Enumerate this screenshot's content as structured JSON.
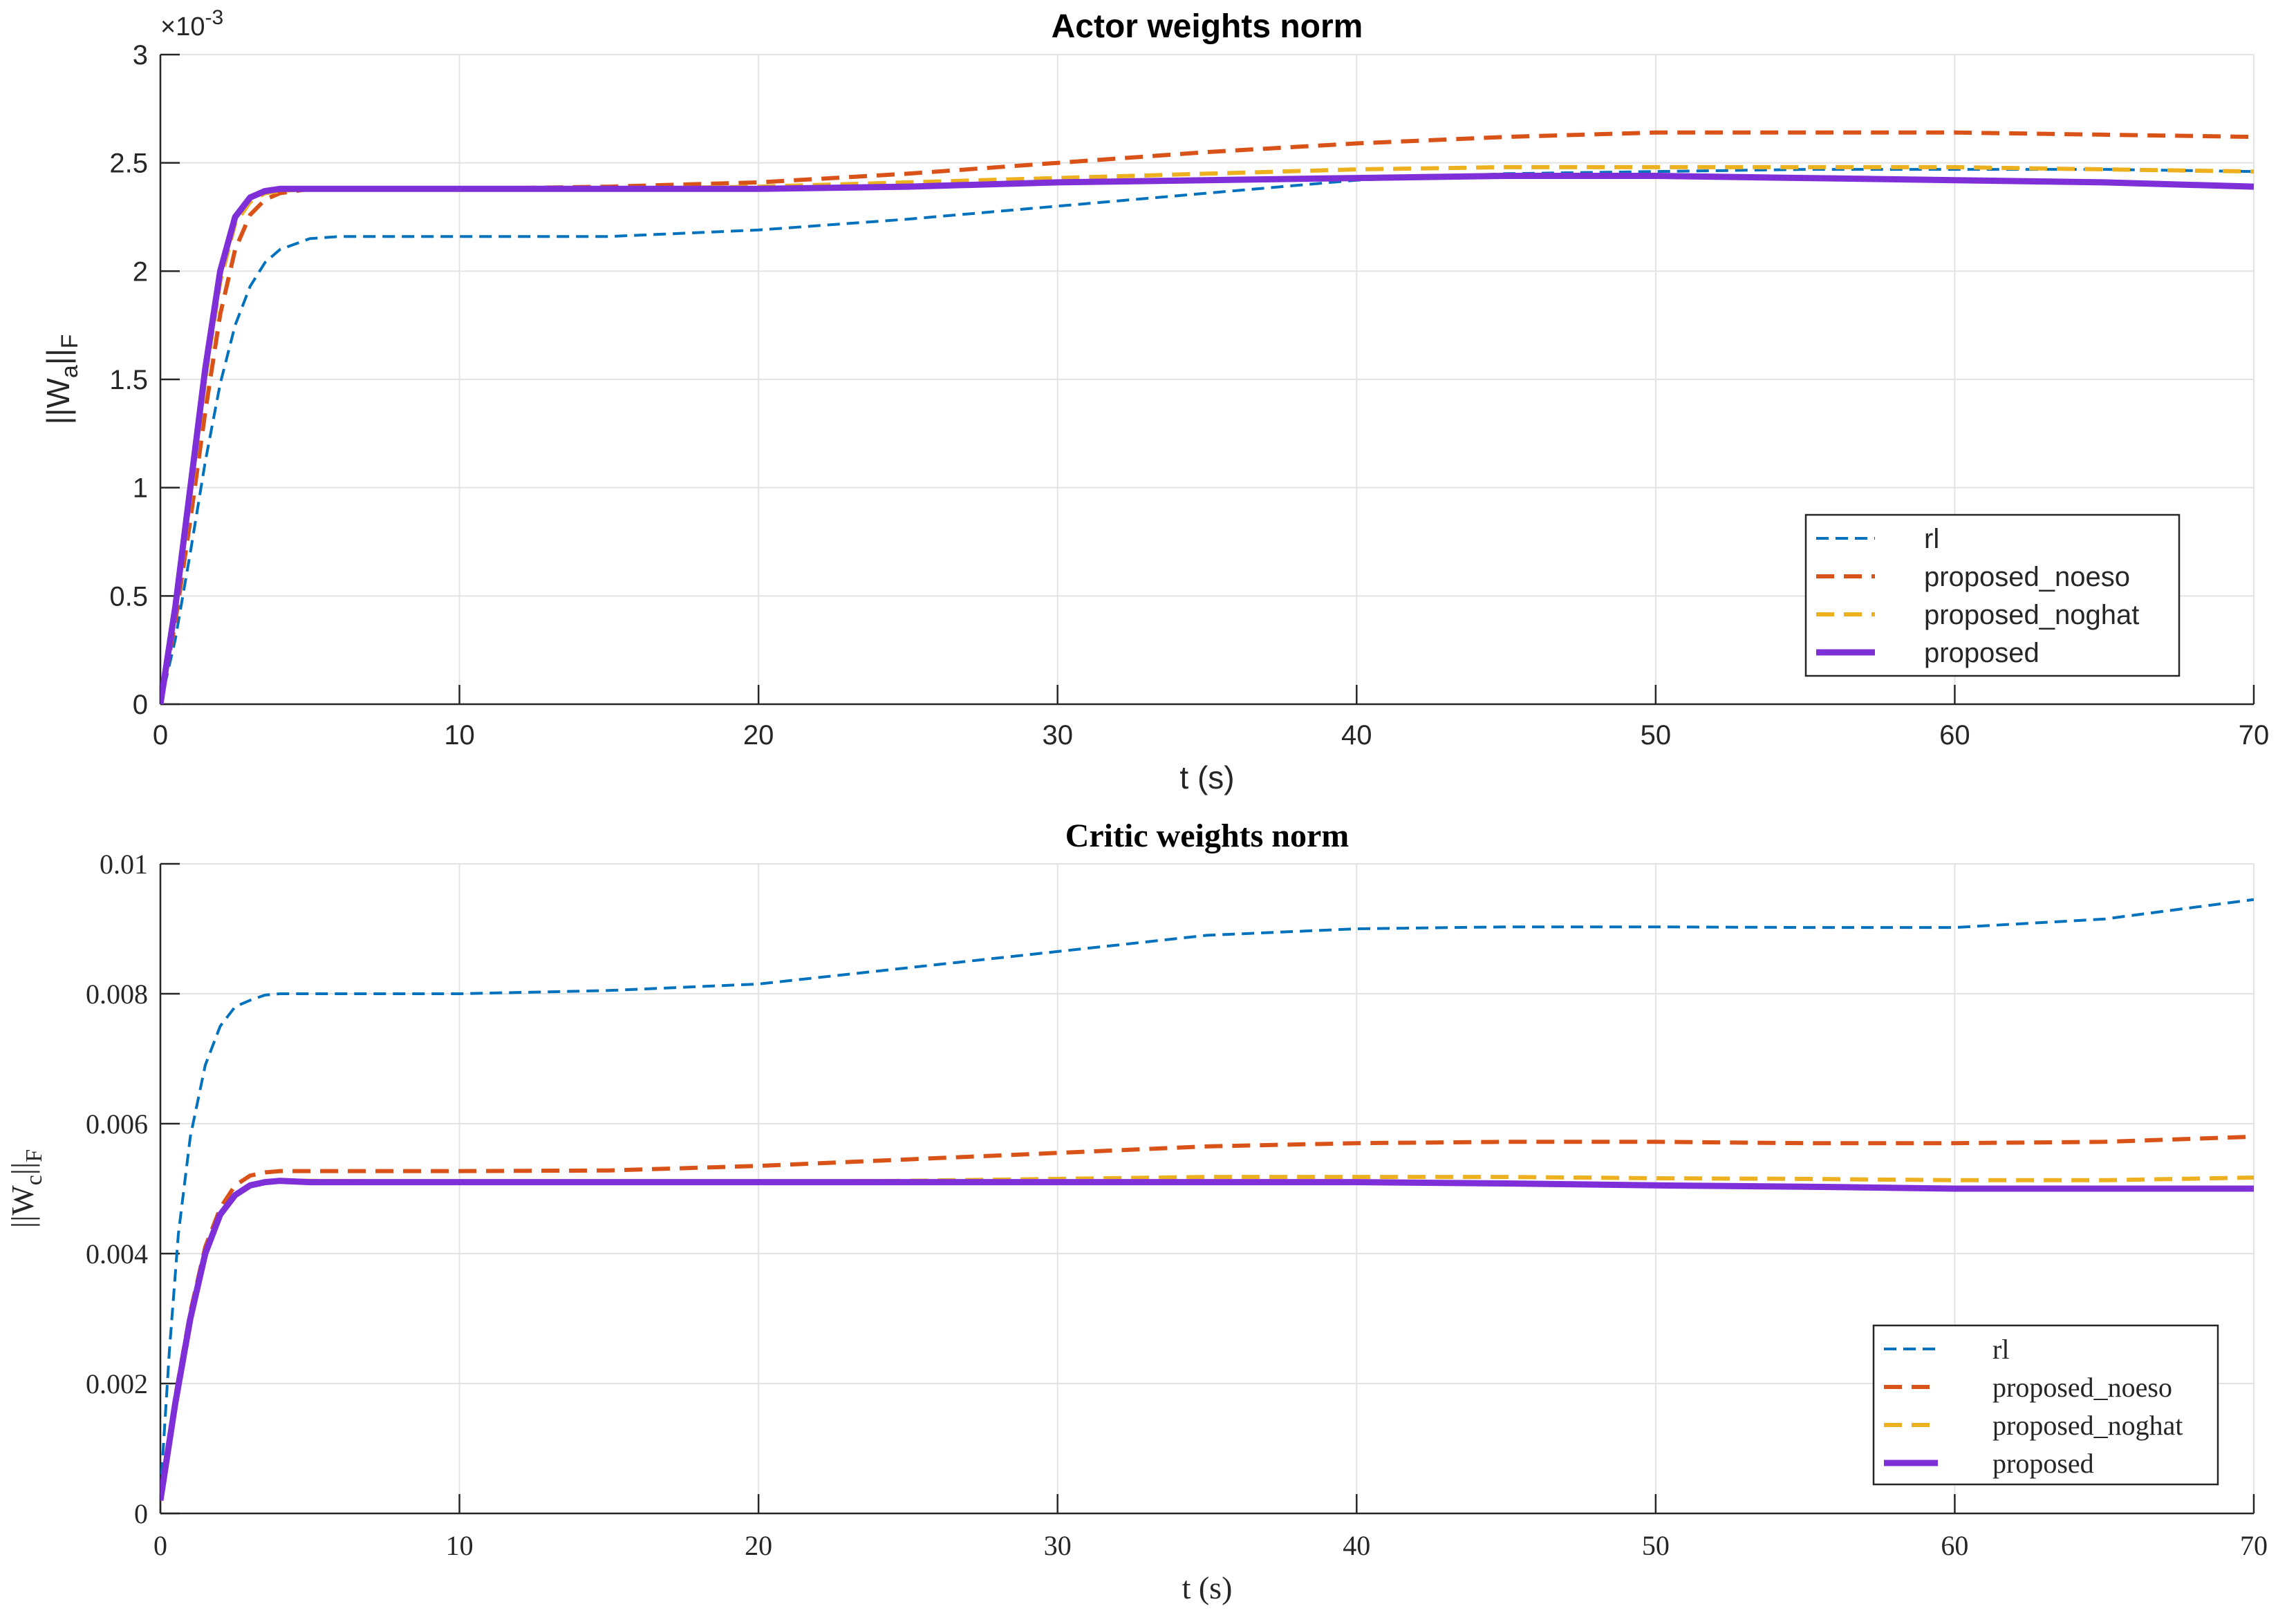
{
  "chart_data": [
    {
      "type": "line",
      "title": "Actor weights norm",
      "xlabel": "t (s)",
      "ylabel": {
        "base": "||W",
        "sub": "a",
        "tail": "||",
        "tail_sub": "F"
      },
      "y_exponent": "×10",
      "y_exponent_power": "-3",
      "xlim": [
        0,
        70
      ],
      "ylim": [
        0,
        3
      ],
      "x_ticks": [
        0,
        10,
        20,
        30,
        40,
        50,
        60,
        70
      ],
      "x_tick_labels": [
        "0",
        "10",
        "20",
        "30",
        "40",
        "50",
        "60",
        "70"
      ],
      "y_ticks": [
        0,
        0.5,
        1,
        1.5,
        2,
        2.5,
        3
      ],
      "y_tick_labels": [
        "0",
        "0.5",
        "1",
        "1.5",
        "2",
        "2.5",
        "3"
      ],
      "grid": true,
      "legend_position": "bottom-right",
      "series": [
        {
          "name": "rl",
          "color": "#0072BD",
          "style": "dash-dot",
          "x": [
            0,
            0.5,
            1,
            1.5,
            2,
            2.5,
            3,
            3.5,
            4,
            5,
            6,
            8,
            10,
            15,
            20,
            25,
            30,
            35,
            40,
            45,
            50,
            55,
            60,
            65,
            70
          ],
          "y": [
            0,
            0.3,
            0.7,
            1.12,
            1.48,
            1.75,
            1.93,
            2.04,
            2.1,
            2.15,
            2.16,
            2.16,
            2.16,
            2.16,
            2.19,
            2.24,
            2.3,
            2.36,
            2.42,
            2.45,
            2.46,
            2.47,
            2.47,
            2.47,
            2.46
          ]
        },
        {
          "name": "proposed_noeso",
          "color": "#D95319",
          "style": "dashed",
          "x": [
            0,
            0.5,
            1,
            1.5,
            2,
            2.5,
            3,
            3.5,
            4,
            5,
            6,
            8,
            10,
            15,
            20,
            25,
            30,
            35,
            40,
            45,
            50,
            55,
            60,
            65,
            70
          ],
          "y": [
            0,
            0.38,
            0.85,
            1.35,
            1.8,
            2.1,
            2.26,
            2.33,
            2.36,
            2.38,
            2.38,
            2.38,
            2.38,
            2.39,
            2.41,
            2.45,
            2.5,
            2.55,
            2.59,
            2.62,
            2.64,
            2.64,
            2.64,
            2.63,
            2.62
          ]
        },
        {
          "name": "proposed_noghat",
          "color": "#EDB120",
          "style": "dashed",
          "x": [
            0,
            0.5,
            1,
            1.5,
            2,
            2.5,
            3,
            3.5,
            4,
            5,
            6,
            8,
            10,
            15,
            20,
            25,
            30,
            35,
            40,
            45,
            50,
            55,
            60,
            65,
            70
          ],
          "y": [
            0,
            0.42,
            0.95,
            1.5,
            1.95,
            2.22,
            2.32,
            2.36,
            2.37,
            2.38,
            2.38,
            2.38,
            2.38,
            2.38,
            2.39,
            2.41,
            2.43,
            2.45,
            2.47,
            2.48,
            2.48,
            2.48,
            2.48,
            2.47,
            2.46
          ]
        },
        {
          "name": "proposed",
          "color": "#7E2FD8",
          "style": "solid",
          "x": [
            0,
            0.5,
            1,
            1.5,
            2,
            2.5,
            3,
            3.5,
            4,
            5,
            6,
            8,
            10,
            15,
            20,
            25,
            30,
            35,
            40,
            45,
            50,
            55,
            60,
            65,
            70
          ],
          "y": [
            0,
            0.45,
            1.0,
            1.55,
            2.0,
            2.25,
            2.34,
            2.37,
            2.38,
            2.38,
            2.38,
            2.38,
            2.38,
            2.38,
            2.38,
            2.39,
            2.41,
            2.42,
            2.43,
            2.44,
            2.44,
            2.43,
            2.42,
            2.41,
            2.39
          ]
        }
      ]
    },
    {
      "type": "line",
      "title": "Critic weights norm",
      "xlabel": "t (s)",
      "ylabel": {
        "base": "||W",
        "sub": "c",
        "tail": "||",
        "tail_sub": "F"
      },
      "xlim": [
        0,
        70
      ],
      "ylim": [
        0,
        0.01
      ],
      "x_ticks": [
        0,
        10,
        20,
        30,
        40,
        50,
        60,
        70
      ],
      "x_tick_labels": [
        "0",
        "10",
        "20",
        "30",
        "40",
        "50",
        "60",
        "70"
      ],
      "y_ticks": [
        0,
        0.002,
        0.004,
        0.006,
        0.008,
        0.01
      ],
      "y_tick_labels": [
        "0",
        "0.002",
        "0.004",
        "0.006",
        "0.008",
        "0.01"
      ],
      "grid": true,
      "legend_position": "bottom-right",
      "series": [
        {
          "name": "rl",
          "color": "#0072BD",
          "style": "dash-dot",
          "x": [
            0,
            0.3,
            0.6,
            1,
            1.5,
            2,
            2.5,
            3,
            3.5,
            4,
            5,
            10,
            15,
            20,
            25,
            30,
            35,
            40,
            45,
            50,
            55,
            60,
            65,
            70
          ],
          "y": [
            0.0003,
            0.0025,
            0.0043,
            0.0058,
            0.0069,
            0.0075,
            0.0078,
            0.0079,
            0.00798,
            0.008,
            0.008,
            0.008,
            0.00805,
            0.00815,
            0.0084,
            0.00865,
            0.0089,
            0.009,
            0.00903,
            0.00903,
            0.00902,
            0.00902,
            0.00915,
            0.00945
          ]
        },
        {
          "name": "proposed_noeso",
          "color": "#D95319",
          "style": "dashed",
          "x": [
            0,
            0.5,
            1,
            1.5,
            2,
            2.5,
            3,
            3.5,
            4,
            5,
            10,
            15,
            20,
            25,
            30,
            35,
            40,
            45,
            50,
            55,
            60,
            65,
            70
          ],
          "y": [
            0.0002,
            0.0018,
            0.0031,
            0.0041,
            0.0047,
            0.00505,
            0.0052,
            0.00525,
            0.00527,
            0.00527,
            0.00527,
            0.00528,
            0.00535,
            0.00545,
            0.00555,
            0.00565,
            0.0057,
            0.00572,
            0.00572,
            0.0057,
            0.0057,
            0.00572,
            0.0058
          ]
        },
        {
          "name": "proposed_noghat",
          "color": "#EDB120",
          "style": "dashed",
          "x": [
            0,
            0.5,
            1,
            1.5,
            2,
            2.5,
            3,
            3.5,
            4,
            5,
            10,
            15,
            20,
            25,
            30,
            35,
            40,
            45,
            50,
            55,
            60,
            65,
            70
          ],
          "y": [
            0.0002,
            0.0017,
            0.003,
            0.004,
            0.0046,
            0.0049,
            0.00505,
            0.0051,
            0.00512,
            0.00512,
            0.0051,
            0.0051,
            0.0051,
            0.00512,
            0.00515,
            0.00518,
            0.00518,
            0.00518,
            0.00516,
            0.00515,
            0.00513,
            0.00513,
            0.00517
          ]
        },
        {
          "name": "proposed",
          "color": "#7E2FD8",
          "style": "solid",
          "x": [
            0,
            0.5,
            1,
            1.5,
            2,
            2.5,
            3,
            3.5,
            4,
            5,
            10,
            15,
            20,
            25,
            30,
            35,
            40,
            45,
            50,
            55,
            60,
            65,
            70
          ],
          "y": [
            0.0002,
            0.0017,
            0.003,
            0.004,
            0.0046,
            0.0049,
            0.00505,
            0.0051,
            0.00512,
            0.0051,
            0.0051,
            0.0051,
            0.0051,
            0.0051,
            0.0051,
            0.0051,
            0.0051,
            0.00508,
            0.00505,
            0.00503,
            0.005,
            0.005,
            0.005
          ]
        }
      ]
    }
  ]
}
